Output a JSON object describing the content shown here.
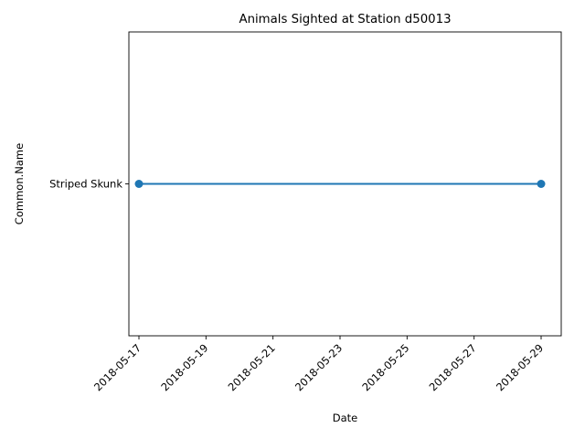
{
  "chart_data": {
    "type": "line",
    "title": "Animals Sighted at Station d50013",
    "xlabel": "Date",
    "ylabel": "Common.Name",
    "x_ticks": [
      "2018-05-17",
      "2018-05-19",
      "2018-05-21",
      "2018-05-23",
      "2018-05-25",
      "2018-05-27",
      "2018-05-29"
    ],
    "xlim": [
      "2018-05-16 16:48",
      "2018-05-29 14:24"
    ],
    "y_categories": [
      "Striped Skunk"
    ],
    "grid": false,
    "legend": "none",
    "series": [
      {
        "color": "#1f77b4",
        "marker": "circle",
        "points": [
          {
            "x": "2018-05-17",
            "y": "Striped Skunk"
          },
          {
            "x": "2018-05-29",
            "y": "Striped Skunk"
          }
        ]
      }
    ]
  }
}
